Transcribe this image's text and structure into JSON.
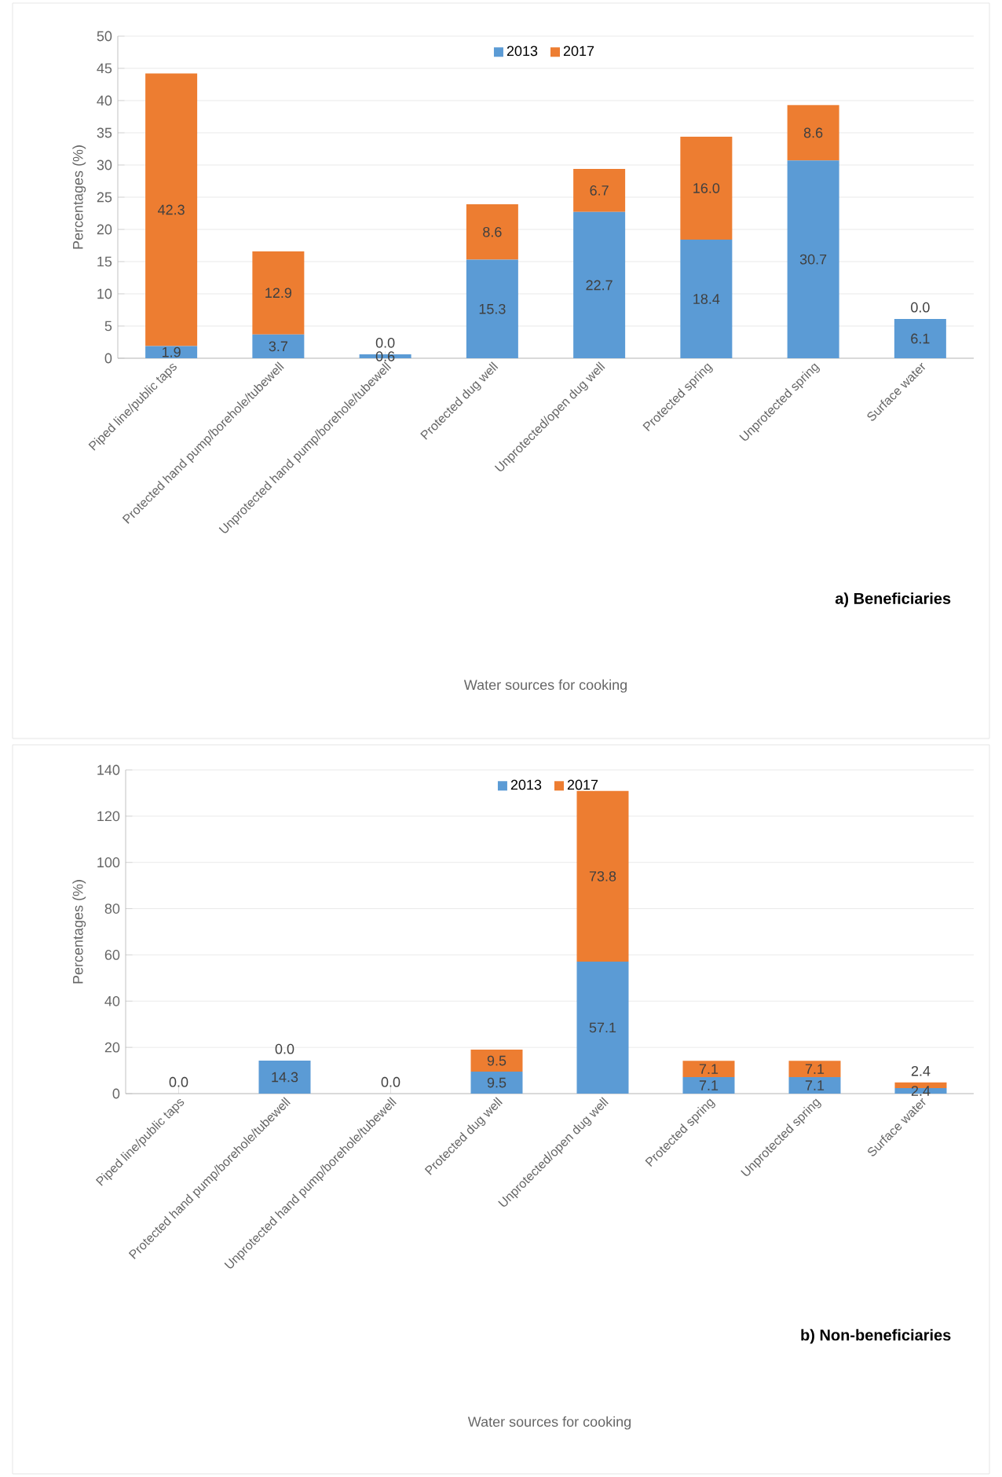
{
  "chart_data": [
    {
      "type": "bar",
      "stacked": true,
      "xlabel": "Water sources for cooking",
      "ylabel": "Percentages (%)",
      "categories": [
        "Piped line/public taps",
        "Protected hand pump/borehole/tubewell",
        "Unprotected hand pump/borehole/tubewell",
        "Protected dug well",
        "Unprotected/open dug well",
        "Protected spring",
        "Unprotected spring",
        "Surface water"
      ],
      "series": [
        {
          "name": "2013",
          "color": "#5b9bd5",
          "values": [
            1.9,
            3.7,
            0.6,
            15.3,
            22.7,
            18.4,
            30.7,
            6.1
          ],
          "value_labels": [
            "1.9",
            "3.7",
            "0.6",
            "15.3",
            "22.7",
            "18.4",
            "30.7",
            "6.1"
          ]
        },
        {
          "name": "2017",
          "color": "#ed7d31",
          "values": [
            42.3,
            12.9,
            0.0,
            8.6,
            6.7,
            16.0,
            8.6,
            0.0
          ],
          "value_labels": [
            "42.3",
            "12.9",
            "0.0",
            "8.6",
            "6.7",
            "16.0",
            "8.6",
            "0.0"
          ]
        }
      ],
      "ylim": [
        0,
        50
      ],
      "yticks": [
        0,
        5,
        10,
        15,
        20,
        25,
        30,
        35,
        40,
        45,
        50
      ],
      "grid": "y",
      "legend": "top",
      "annotations": [
        "a) Beneficiaries"
      ]
    },
    {
      "type": "bar",
      "stacked": true,
      "xlabel": "Water sources for cooking",
      "ylabel": "Percentages (%)",
      "categories": [
        "Piped line/public taps",
        "Protected hand pump/borehole/tubewell",
        "Unprotected hand pump/borehole/tubewell",
        "Protected dug well",
        "Unprotected/open dug well",
        "Protected spring",
        "Unprotected spring",
        "Surface water"
      ],
      "series": [
        {
          "name": "2013",
          "color": "#5b9bd5",
          "values": [
            0.0,
            14.3,
            0.0,
            9.5,
            57.1,
            7.1,
            7.1,
            2.4
          ],
          "value_labels": [
            null,
            "14.3",
            null,
            "9.5",
            "57.1",
            "7.1",
            "7.1",
            "2.4"
          ]
        },
        {
          "name": "2017",
          "color": "#ed7d31",
          "values": [
            0.0,
            0.0,
            0.0,
            9.5,
            73.8,
            7.1,
            7.1,
            2.4
          ],
          "value_labels": [
            "0.0",
            "0.0",
            "0.0",
            "9.5",
            "73.8",
            "7.1",
            "7.1",
            "2.4"
          ]
        }
      ],
      "ylim": [
        0,
        140
      ],
      "yticks": [
        0,
        20,
        40,
        60,
        80,
        100,
        120,
        140
      ],
      "grid": "y",
      "legend": "top",
      "annotations": [
        "b) Non-beneficiaries"
      ]
    }
  ]
}
